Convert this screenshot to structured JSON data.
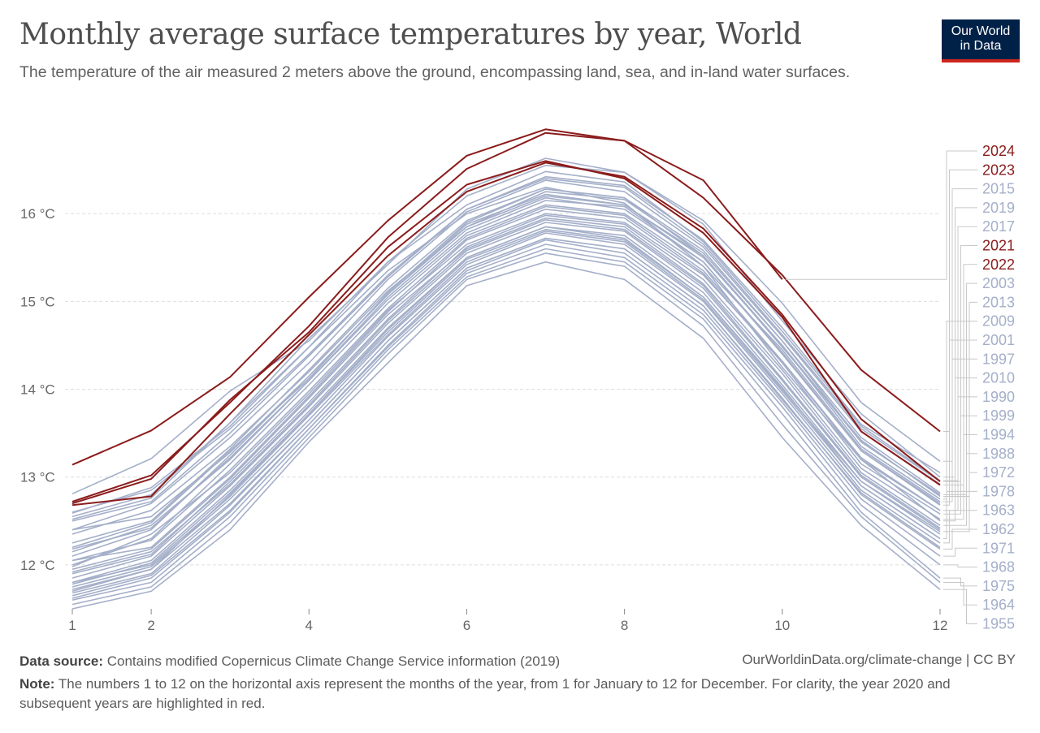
{
  "title": "Monthly average surface temperatures by year, World",
  "subtitle": "The temperature of the air measured 2 meters above the ground, encompassing land, sea, and in-land water surfaces.",
  "logo": {
    "line1": "Our World",
    "line2": "in Data"
  },
  "footer": {
    "source_label": "Data source:",
    "source_text": "Contains modified Copernicus Climate Change Service information (2019)",
    "credit": "OurWorldinData.org/climate-change | CC BY",
    "note_label": "Note:",
    "note_text": "The numbers 1 to 12 on the horizontal axis represent the months of the year, from 1 for January to 12 for December. For clarity, the year 2020 and subsequent years are highlighted in red."
  },
  "colors": {
    "highlight": "#8b1c1c",
    "muted": "#a4afc9",
    "grid": "#dddddd",
    "logo_bg": "#002147",
    "logo_accent": "#ce261e"
  },
  "chart_data": {
    "type": "line",
    "title": "Monthly average surface temperatures by year, World",
    "xlabel": "",
    "ylabel": "",
    "xlim": [
      1,
      12
    ],
    "ylim": [
      11.5,
      17.0
    ],
    "x_ticks": [
      {
        "value": 1,
        "label": "1"
      },
      {
        "value": 2,
        "label": "2"
      },
      {
        "value": 4,
        "label": "4"
      },
      {
        "value": 6,
        "label": "6"
      },
      {
        "value": 8,
        "label": "8"
      },
      {
        "value": 10,
        "label": "10"
      },
      {
        "value": 12,
        "label": "12"
      }
    ],
    "y_ticks": [
      {
        "value": 12,
        "label": "12 °C"
      },
      {
        "value": 13,
        "label": "13 °C"
      },
      {
        "value": 14,
        "label": "14 °C"
      },
      {
        "value": 15,
        "label": "15 °C"
      },
      {
        "value": 16,
        "label": "16 °C"
      }
    ],
    "x": [
      1,
      2,
      3,
      4,
      5,
      6,
      7,
      8,
      9,
      10,
      11,
      12
    ],
    "series": [
      {
        "name": "2024",
        "highlight": true,
        "values": [
          13.14,
          13.53,
          14.14,
          15.05,
          15.92,
          16.66,
          16.96,
          16.83,
          16.38,
          15.25,
          null,
          null
        ]
      },
      {
        "name": "2023",
        "highlight": true,
        "values": [
          12.72,
          13.02,
          13.85,
          14.72,
          15.73,
          16.51,
          16.92,
          16.83,
          16.18,
          15.3,
          14.22,
          13.52
        ]
      },
      {
        "name": "2015",
        "highlight": false,
        "values": [
          12.59,
          12.88,
          13.58,
          14.48,
          15.45,
          16.2,
          16.55,
          16.47,
          15.92,
          14.98,
          13.85,
          13.18
        ]
      },
      {
        "name": "2019",
        "highlight": false,
        "values": [
          12.52,
          12.76,
          13.62,
          14.58,
          15.42,
          16.28,
          16.63,
          16.47,
          15.88,
          14.78,
          13.72,
          13.0
        ]
      },
      {
        "name": "2017",
        "highlight": false,
        "values": [
          12.81,
          13.21,
          13.98,
          14.55,
          15.45,
          16.1,
          16.48,
          16.36,
          15.68,
          14.66,
          13.58,
          12.96
        ]
      },
      {
        "name": "2021",
        "highlight": true,
        "values": [
          12.68,
          12.78,
          13.72,
          14.62,
          15.52,
          16.25,
          16.58,
          16.42,
          15.83,
          14.85,
          13.66,
          12.95
        ]
      },
      {
        "name": "2022",
        "highlight": true,
        "values": [
          12.7,
          12.98,
          13.88,
          14.65,
          15.62,
          16.33,
          16.6,
          16.4,
          15.78,
          14.82,
          13.52,
          12.91
        ]
      },
      {
        "name": "2003",
        "highlight": false,
        "values": [
          12.35,
          12.62,
          13.35,
          14.2,
          15.12,
          15.85,
          16.25,
          16.16,
          15.55,
          14.55,
          13.4,
          12.8
        ]
      },
      {
        "name": "2013",
        "highlight": false,
        "values": [
          12.4,
          12.55,
          13.28,
          14.15,
          15.08,
          15.88,
          16.22,
          16.1,
          15.52,
          14.48,
          13.42,
          12.78
        ]
      },
      {
        "name": "2009",
        "highlight": false,
        "values": [
          12.2,
          12.48,
          13.3,
          14.12,
          15.1,
          15.9,
          16.28,
          16.18,
          15.52,
          14.5,
          13.35,
          12.75
        ]
      },
      {
        "name": "2001",
        "highlight": false,
        "values": [
          12.18,
          12.42,
          13.22,
          14.1,
          15.02,
          15.78,
          16.15,
          16.08,
          15.45,
          14.42,
          13.3,
          12.68
        ]
      },
      {
        "name": "1997",
        "highlight": false,
        "values": [
          12.0,
          12.3,
          13.15,
          14.05,
          14.98,
          15.75,
          16.1,
          16.0,
          15.4,
          14.45,
          13.32,
          12.72
        ]
      },
      {
        "name": "2010",
        "highlight": false,
        "values": [
          12.55,
          12.8,
          13.62,
          14.48,
          15.35,
          16.0,
          16.3,
          16.12,
          15.4,
          14.25,
          13.2,
          12.5
        ]
      },
      {
        "name": "1990",
        "highlight": false,
        "values": [
          11.98,
          12.35,
          13.05,
          13.95,
          14.9,
          15.65,
          16.0,
          15.9,
          15.3,
          14.32,
          13.2,
          12.62
        ]
      },
      {
        "name": "1999",
        "highlight": false,
        "values": [
          12.05,
          12.2,
          13.0,
          13.92,
          14.88,
          15.7,
          16.05,
          15.95,
          15.32,
          14.3,
          13.15,
          12.58
        ]
      },
      {
        "name": "1994",
        "highlight": false,
        "values": [
          11.9,
          12.12,
          12.95,
          13.85,
          14.8,
          15.62,
          15.98,
          15.88,
          15.25,
          14.22,
          13.1,
          12.52
        ]
      },
      {
        "name": "1988",
        "highlight": false,
        "values": [
          11.95,
          12.18,
          12.98,
          13.9,
          14.85,
          15.6,
          15.95,
          15.85,
          15.2,
          14.18,
          13.05,
          12.45
        ]
      },
      {
        "name": "1972",
        "highlight": false,
        "values": [
          11.7,
          11.95,
          12.8,
          13.72,
          14.65,
          15.48,
          15.82,
          15.7,
          15.05,
          14.0,
          12.95,
          12.38
        ]
      },
      {
        "name": "1978",
        "highlight": false,
        "values": [
          11.8,
          12.05,
          12.85,
          13.75,
          14.7,
          15.5,
          15.85,
          15.72,
          15.05,
          14.02,
          12.9,
          12.3
        ]
      },
      {
        "name": "1963",
        "highlight": false,
        "values": [
          11.75,
          11.98,
          12.75,
          13.65,
          14.6,
          15.42,
          15.78,
          15.65,
          15.0,
          13.95,
          12.85,
          12.25
        ]
      },
      {
        "name": "1962",
        "highlight": false,
        "values": [
          11.72,
          11.95,
          12.7,
          13.6,
          14.55,
          15.38,
          15.72,
          15.6,
          14.95,
          13.9,
          12.8,
          12.18
        ]
      },
      {
        "name": "1971",
        "highlight": false,
        "values": [
          11.65,
          11.88,
          12.62,
          13.55,
          14.5,
          15.35,
          15.7,
          15.55,
          14.9,
          13.85,
          12.75,
          12.1
        ]
      },
      {
        "name": "1968",
        "highlight": false,
        "values": [
          11.62,
          11.85,
          12.6,
          13.55,
          14.48,
          15.32,
          15.65,
          15.5,
          14.85,
          13.8,
          12.68,
          12.0
        ]
      },
      {
        "name": "1975",
        "highlight": false,
        "values": [
          11.6,
          11.8,
          12.55,
          13.5,
          14.45,
          15.28,
          15.6,
          15.45,
          14.8,
          13.72,
          12.6,
          11.85
        ]
      },
      {
        "name": "1964",
        "highlight": false,
        "values": [
          11.55,
          11.75,
          12.48,
          13.45,
          14.4,
          15.25,
          15.55,
          15.4,
          14.72,
          13.6,
          12.55,
          11.8
        ]
      },
      {
        "name": "1955",
        "highlight": false,
        "values": [
          11.5,
          11.7,
          12.4,
          13.4,
          14.3,
          15.18,
          15.45,
          15.25,
          14.58,
          13.45,
          12.45,
          11.72
        ]
      }
    ],
    "background_series": [
      [
        12.1,
        12.4,
        13.25,
        14.15,
        15.08,
        15.85,
        16.2,
        16.1,
        15.5,
        14.5,
        13.4,
        12.8
      ],
      [
        12.25,
        12.5,
        13.32,
        14.22,
        15.15,
        15.92,
        16.28,
        16.18,
        15.58,
        14.55,
        13.45,
        12.82
      ],
      [
        11.85,
        12.1,
        12.9,
        13.8,
        14.75,
        15.55,
        15.9,
        15.8,
        15.15,
        14.1,
        13.0,
        12.4
      ],
      [
        11.8,
        12.0,
        12.78,
        13.7,
        14.62,
        15.45,
        15.8,
        15.68,
        15.02,
        13.98,
        12.9,
        12.3
      ],
      [
        12.4,
        12.7,
        13.45,
        14.3,
        15.25,
        16.02,
        16.38,
        16.25,
        15.62,
        14.6,
        13.52,
        12.92
      ],
      [
        11.68,
        11.9,
        12.68,
        13.6,
        14.55,
        15.38,
        15.72,
        15.6,
        14.95,
        13.88,
        12.82,
        12.2
      ],
      [
        12.6,
        12.85,
        13.55,
        14.4,
        15.3,
        16.05,
        16.4,
        16.3,
        15.65,
        14.62,
        13.55,
        12.95
      ],
      [
        11.92,
        12.15,
        12.92,
        13.82,
        14.78,
        15.58,
        15.93,
        15.82,
        15.18,
        14.12,
        13.02,
        12.42
      ],
      [
        12.5,
        12.72,
        13.5,
        14.38,
        15.28,
        16.05,
        16.42,
        16.32,
        15.7,
        14.7,
        13.6,
        13.05
      ],
      [
        11.78,
        12.02,
        12.82,
        13.72,
        14.68,
        15.5,
        15.85,
        15.75,
        15.1,
        14.05,
        12.95,
        12.35
      ],
      [
        12.15,
        12.45,
        13.2,
        14.1,
        15.05,
        15.82,
        16.18,
        16.05,
        15.45,
        14.4,
        13.3,
        12.7
      ],
      [
        12.05,
        12.28,
        13.08,
        13.98,
        14.92,
        15.72,
        16.08,
        15.98,
        15.35,
        14.32,
        13.22,
        12.62
      ]
    ]
  }
}
